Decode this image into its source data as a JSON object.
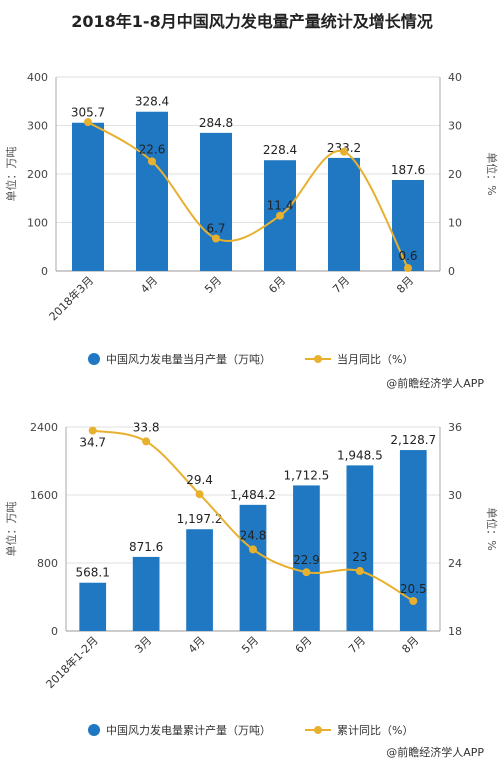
{
  "title": "2018年1-8月中国风力发电量产量统计及增长情况",
  "credit": "@前瞻经济学人APP",
  "colors": {
    "bar": "#1f78c1",
    "line": "#e8b02f"
  },
  "chart_data": [
    {
      "type": "bar",
      "categories": [
        "2018年3月",
        "4月",
        "5月",
        "6月",
        "7月",
        "8月"
      ],
      "series": [
        {
          "name": "中国风力发电量当月产量（万吨）",
          "values": [
            305.7,
            328.4,
            284.8,
            228.4,
            233.2,
            187.6
          ]
        },
        {
          "name": "当月同比（%）",
          "type": "line",
          "axis": "right",
          "values": [
            30.7,
            22.6,
            6.7,
            11.4,
            24.6,
            0.6
          ]
        }
      ],
      "data_labels": {
        "bars": [
          "305.7",
          "328.4",
          "284.8",
          "228.4",
          "233.2",
          "187.6"
        ],
        "line": [
          "",
          "22.6",
          "6.7",
          "11.4",
          "",
          "0.6"
        ]
      },
      "ylabel": "单位：万吨",
      "y2label": "单位：%",
      "ylim": [
        0,
        400
      ],
      "y2lim": [
        0,
        40
      ],
      "yticks": [
        "0",
        "100",
        "200",
        "300",
        "400"
      ],
      "y2ticks": [
        "0",
        "10",
        "20",
        "30",
        "40"
      ],
      "legend": [
        "中国风力发电量当月产量（万吨）",
        "当月同比（%）"
      ]
    },
    {
      "type": "bar",
      "categories": [
        "2018年1-2月",
        "3月",
        "4月",
        "5月",
        "6月",
        "7月",
        "8月"
      ],
      "series": [
        {
          "name": "中国风力发电量累计产量（万吨）",
          "values": [
            568.1,
            871.6,
            1197.2,
            1484.2,
            1712.5,
            1948.5,
            2128.7
          ]
        },
        {
          "name": "累计同比（%）",
          "type": "line",
          "axis": "right",
          "values": [
            34.7,
            33.8,
            29.4,
            24.8,
            22.9,
            23,
            20.5
          ]
        }
      ],
      "data_labels": {
        "bars": [
          "568.1",
          "871.6",
          "1,197.2",
          "1,484.2",
          "1,712.5",
          "1,948.5",
          "2,128.7"
        ],
        "line": [
          "34.7",
          "33.8",
          "29.4",
          "24.8",
          "22.9",
          "23",
          "20.5"
        ]
      },
      "ylabel": "单位：万吨",
      "y2label": "单位：%",
      "ylim": [
        0,
        2400
      ],
      "y2lim": [
        18,
        35
      ],
      "yticks": [
        "0",
        "800",
        "1600",
        "2400"
      ],
      "y2ticks": [
        "18",
        "24",
        "30",
        "36"
      ],
      "legend": [
        "中国风力发电量累计产量（万吨）",
        "累计同比（%）"
      ]
    }
  ]
}
